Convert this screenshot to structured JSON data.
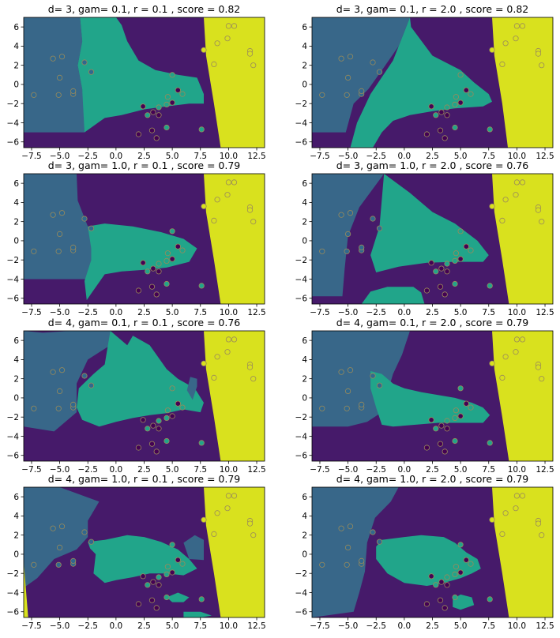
{
  "colors": {
    "class0": "#440154",
    "class1": "#31688e",
    "class2": "#21a58a",
    "class3": "#d9e11e",
    "region_purple": "#461a6a",
    "region_blue": "#386789",
    "region_teal": "#21a58a",
    "region_yellow": "#d9e11e",
    "marker_edge": "#9a8a5a"
  },
  "chart_data": [
    {
      "type": "scatter",
      "title": "d= 3, gam= 0.1, r = 0.1 , score = 0.82",
      "xlim": [
        -8.2,
        13.2
      ],
      "ylim": [
        -6.6,
        7.0
      ]
    },
    {
      "type": "scatter",
      "title": "d= 3, gam= 0.1, r = 2.0 , score = 0.82",
      "xlim": [
        -8.2,
        13.2
      ],
      "ylim": [
        -6.6,
        7.0
      ]
    },
    {
      "type": "scatter",
      "title": "d= 3, gam= 1.0, r = 0.1 , score = 0.79",
      "xlim": [
        -8.2,
        13.2
      ],
      "ylim": [
        -6.6,
        7.0
      ]
    },
    {
      "type": "scatter",
      "title": "d= 3, gam= 1.0, r = 2.0 , score = 0.76",
      "xlim": [
        -8.2,
        13.2
      ],
      "ylim": [
        -6.6,
        7.0
      ]
    },
    {
      "type": "scatter",
      "title": "d= 4, gam= 0.1, r = 0.1 , score = 0.76",
      "xlim": [
        -8.2,
        13.2
      ],
      "ylim": [
        -6.6,
        7.0
      ]
    },
    {
      "type": "scatter",
      "title": "d= 4, gam= 0.1, r = 2.0 , score = 0.79",
      "xlim": [
        -8.2,
        13.2
      ],
      "ylim": [
        -6.6,
        7.0
      ]
    },
    {
      "type": "scatter",
      "title": "d= 4, gam= 1.0, r = 0.1 , score = 0.79",
      "xlim": [
        -8.2,
        13.2
      ],
      "ylim": [
        -6.6,
        7.0
      ]
    },
    {
      "type": "scatter",
      "title": "d= 4, gam= 1.0, r = 2.0 , score = 0.79",
      "xlim": [
        -8.2,
        13.2
      ],
      "ylim": [
        -6.6,
        7.0
      ]
    }
  ],
  "shared": {
    "xticks": [
      -7.5,
      -5.0,
      -2.5,
      0.0,
      2.5,
      5.0,
      7.5,
      10.0,
      12.5
    ],
    "xtick_labels": [
      "−7.5",
      "−5.0",
      "−2.5",
      "0.0",
      "2.5",
      "5.0",
      "7.5",
      "10.0",
      "12.5"
    ],
    "yticks": [
      6,
      4,
      2,
      0,
      -2,
      -4,
      -6
    ],
    "ytick_labels": [
      "6",
      "4",
      "2",
      "0",
      "−2",
      "−4",
      "−6"
    ],
    "points": [
      {
        "x": -5.6,
        "y": 2.7,
        "c": 1
      },
      {
        "x": -4.8,
        "y": 2.9,
        "c": 1
      },
      {
        "x": -2.8,
        "y": 2.3,
        "c": 1
      },
      {
        "x": -2.2,
        "y": 1.3,
        "c": 1
      },
      {
        "x": -5.0,
        "y": 0.7,
        "c": 1
      },
      {
        "x": -7.3,
        "y": -1.1,
        "c": 1
      },
      {
        "x": -5.1,
        "y": -1.1,
        "c": 1
      },
      {
        "x": -3.8,
        "y": -1.0,
        "c": 1
      },
      {
        "x": -3.8,
        "y": -0.7,
        "c": 1
      },
      {
        "x": 10.0,
        "y": 6.1,
        "c": 3
      },
      {
        "x": 10.5,
        "y": 6.1,
        "c": 3
      },
      {
        "x": 9.9,
        "y": 4.8,
        "c": 3
      },
      {
        "x": 9.0,
        "y": 4.3,
        "c": 3
      },
      {
        "x": 7.8,
        "y": 3.6,
        "c": 3
      },
      {
        "x": 8.7,
        "y": 2.1,
        "c": 3
      },
      {
        "x": 11.9,
        "y": 3.5,
        "c": 3
      },
      {
        "x": 11.9,
        "y": 3.2,
        "c": 3
      },
      {
        "x": 12.2,
        "y": 2.0,
        "c": 3
      },
      {
        "x": 5.0,
        "y": 1.0,
        "c": 2
      },
      {
        "x": 5.9,
        "y": -1.0,
        "c": 2
      },
      {
        "x": 4.6,
        "y": -1.3,
        "c": 2
      },
      {
        "x": 4.5,
        "y": -2.1,
        "c": 2
      },
      {
        "x": 3.8,
        "y": -2.4,
        "c": 2
      },
      {
        "x": 2.8,
        "y": -3.2,
        "c": 2
      },
      {
        "x": 4.5,
        "y": -4.5,
        "c": 2
      },
      {
        "x": 7.6,
        "y": -4.7,
        "c": 2
      },
      {
        "x": 5.5,
        "y": -0.6,
        "c": 0
      },
      {
        "x": 5.0,
        "y": -1.9,
        "c": 0
      },
      {
        "x": 2.4,
        "y": -2.3,
        "c": 0
      },
      {
        "x": 3.3,
        "y": -2.9,
        "c": 0
      },
      {
        "x": 3.8,
        "y": -3.2,
        "c": 0
      },
      {
        "x": 3.2,
        "y": -4.8,
        "c": 0
      },
      {
        "x": 2.0,
        "y": -5.2,
        "c": 0
      },
      {
        "x": 3.6,
        "y": -5.6,
        "c": 0
      }
    ]
  }
}
